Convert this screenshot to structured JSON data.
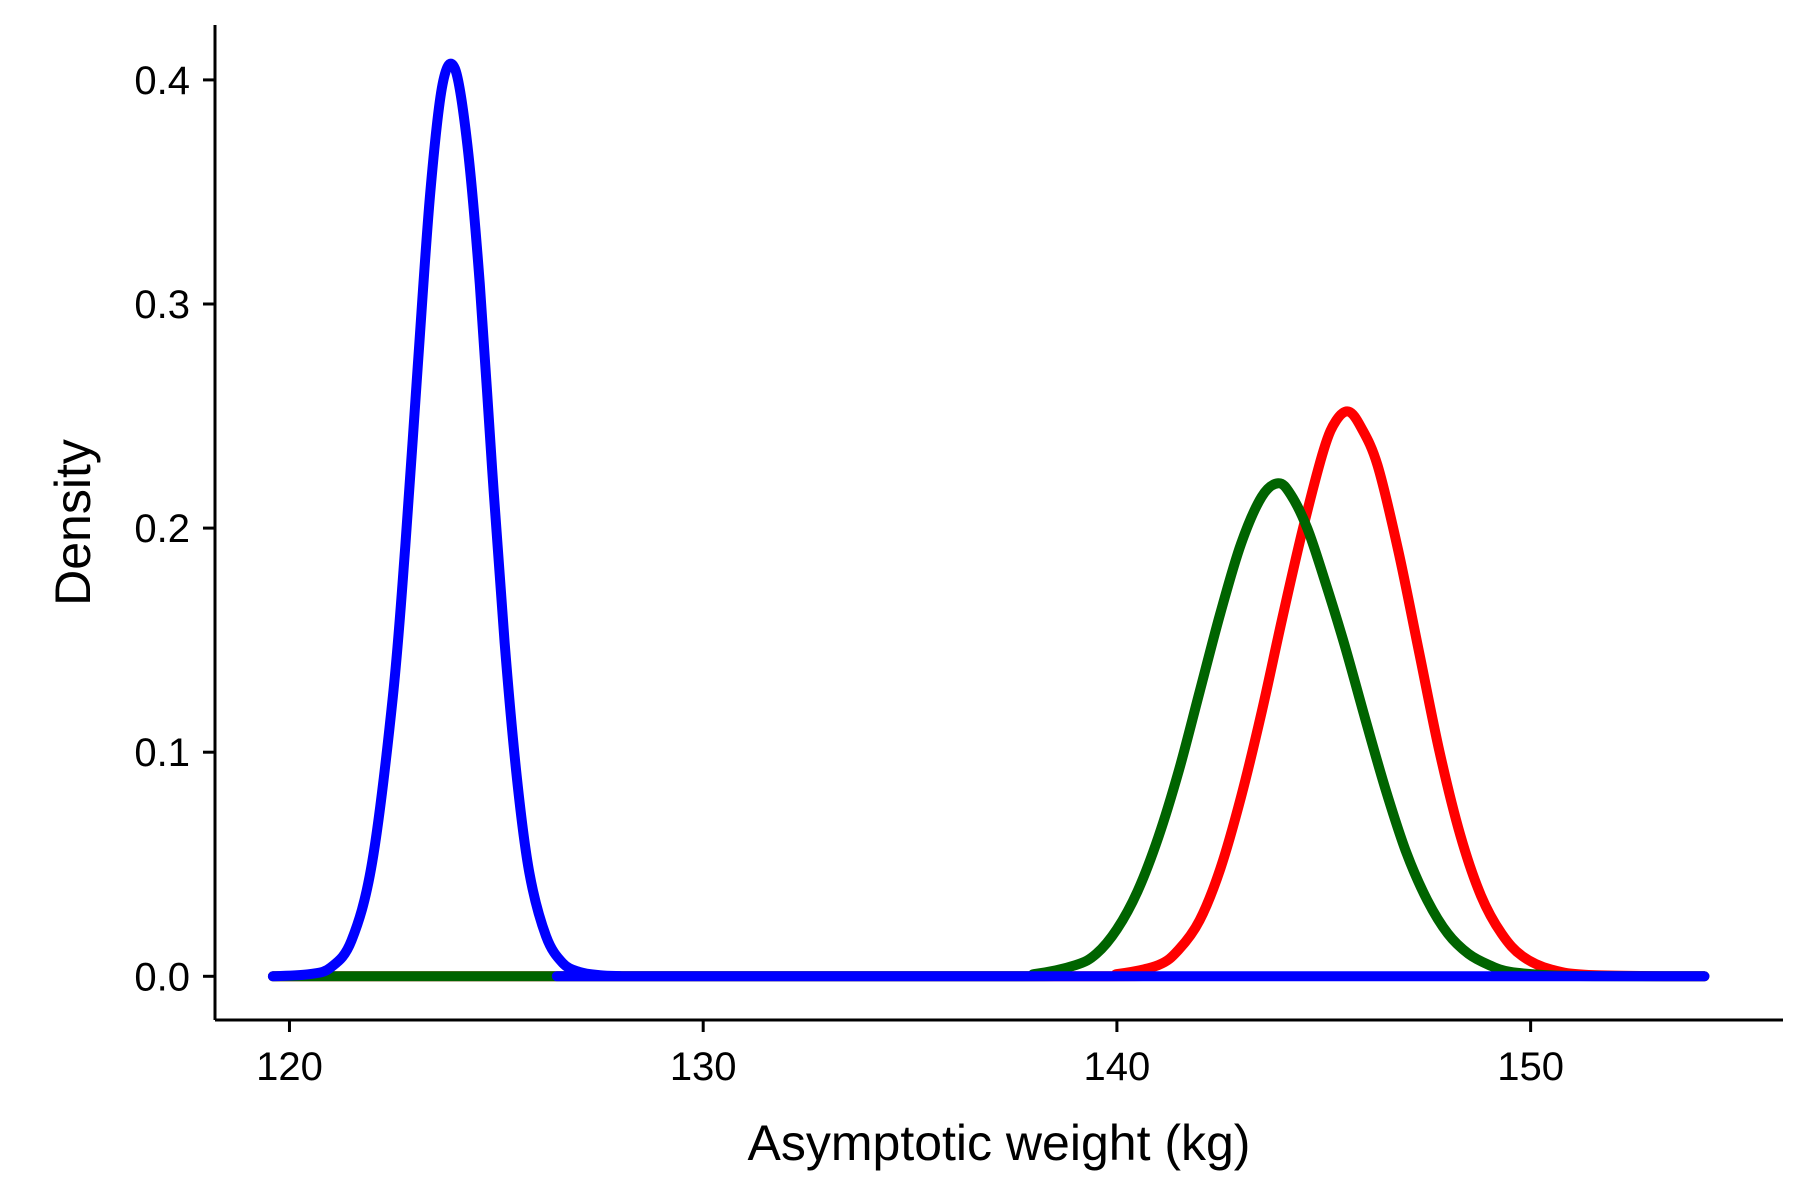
{
  "chart_data": {
    "type": "line",
    "title": "",
    "xlabel": "Asymptotic weight (kg)",
    "ylabel": "Density",
    "xlim": [
      118.2,
      156.1
    ],
    "ylim": [
      -0.0195,
      0.4245
    ],
    "x_ticks": [
      120,
      130,
      140,
      150
    ],
    "x_tick_labels": [
      "120",
      "130",
      "140",
      "150"
    ],
    "y_ticks": [
      0.0,
      0.1,
      0.2,
      0.3,
      0.4
    ],
    "y_tick_labels": [
      "0.0",
      "0.1",
      "0.2",
      "0.3",
      "0.4"
    ],
    "grid": false,
    "legend": "none",
    "series": [
      {
        "color": "#FF0000",
        "x": [
          119.6,
          139.0,
          140.0,
          141.0,
          141.5,
          142.0,
          142.5,
          143.0,
          143.5,
          144.0,
          144.5,
          145.0,
          145.3,
          145.6,
          145.9,
          146.3,
          146.8,
          147.3,
          147.8,
          148.3,
          148.8,
          149.3,
          149.8,
          150.5,
          151.5,
          154.2
        ],
        "y": [
          0.0,
          0.0,
          0.001,
          0.005,
          0.012,
          0.025,
          0.048,
          0.08,
          0.118,
          0.16,
          0.2,
          0.235,
          0.248,
          0.252,
          0.245,
          0.228,
          0.19,
          0.145,
          0.1,
          0.063,
          0.036,
          0.019,
          0.009,
          0.003,
          0.0005,
          0.0
        ]
      },
      {
        "color": "#006400",
        "x": [
          119.6,
          137.0,
          138.0,
          139.0,
          139.5,
          140.0,
          140.5,
          141.0,
          141.5,
          142.0,
          142.5,
          143.0,
          143.5,
          143.9,
          144.2,
          144.6,
          145.0,
          145.5,
          146.0,
          146.5,
          147.0,
          147.5,
          148.0,
          148.5,
          149.0,
          149.5,
          150.5,
          151.5,
          154.2
        ],
        "y": [
          0.0,
          0.0,
          0.001,
          0.005,
          0.01,
          0.021,
          0.038,
          0.062,
          0.092,
          0.127,
          0.162,
          0.193,
          0.214,
          0.22,
          0.215,
          0.2,
          0.178,
          0.148,
          0.115,
          0.083,
          0.055,
          0.034,
          0.019,
          0.01,
          0.005,
          0.002,
          0.0004,
          0.0001,
          0.0
        ]
      },
      {
        "color": "#0000FF",
        "x": [
          119.6,
          120.5,
          121.0,
          121.5,
          122.0,
          122.5,
          122.8,
          123.1,
          123.4,
          123.7,
          124.0,
          124.3,
          124.6,
          124.9,
          125.2,
          125.5,
          125.8,
          126.2,
          126.6,
          127.0,
          127.5,
          128.0,
          128.5,
          154.2
        ],
        "y": [
          0.0,
          0.001,
          0.004,
          0.016,
          0.051,
          0.125,
          0.192,
          0.272,
          0.349,
          0.398,
          0.405,
          0.371,
          0.309,
          0.226,
          0.149,
          0.088,
          0.046,
          0.018,
          0.006,
          0.002,
          0.0005,
          0.0001,
          0.0,
          0.0
        ]
      }
    ]
  }
}
